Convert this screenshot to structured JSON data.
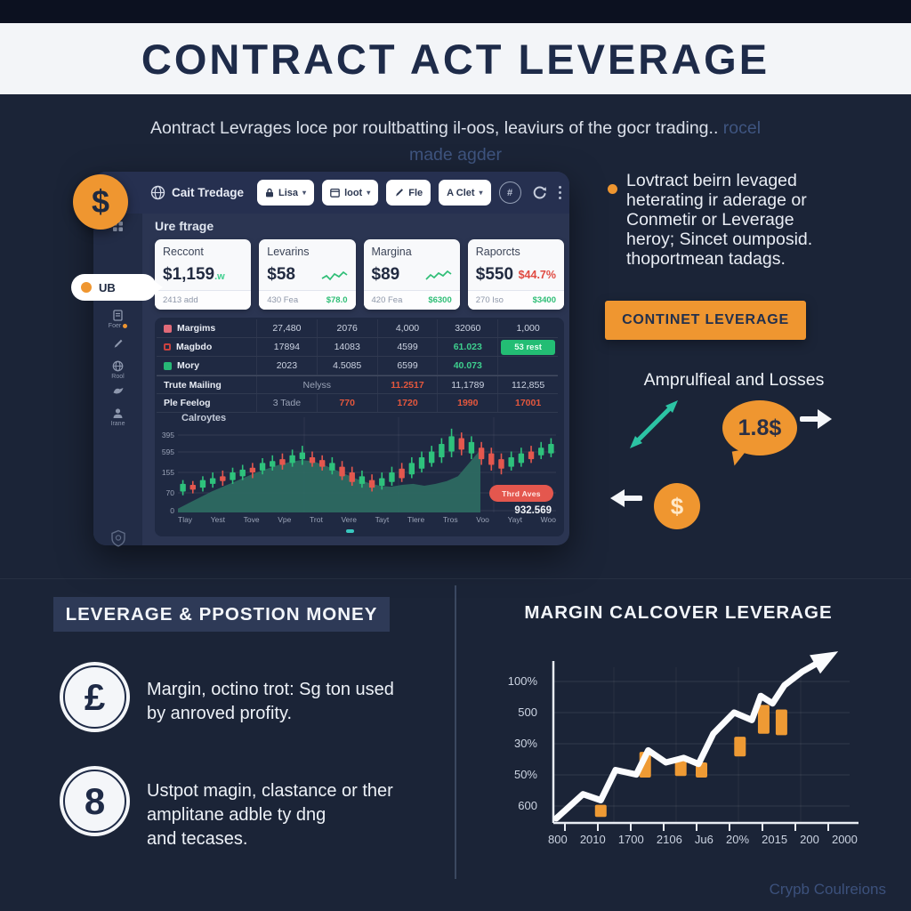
{
  "colors": {
    "orange": "#ef9630",
    "green": "#2ebd7b",
    "red": "#e4574e",
    "teal": "#2cc4a4",
    "navy": "#1e2b49"
  },
  "banner": {
    "title": "CONTRACT ACT LEVERAGE"
  },
  "intro": {
    "line1": "Aontract Levrages loce por roultbatting il-oos, leaviurs of the gocr trading..",
    "line1_faded": " rocel",
    "line2_faded": "made agder"
  },
  "dashboard": {
    "coin_symbol": "$",
    "logo_label": "Cait Tredage",
    "toolbar": {
      "btn1": "Lisa",
      "btn2": "loot",
      "btn3": "Fle",
      "btn4": "A Clet",
      "hash": "#"
    },
    "sidebar": {
      "active_label": "UB",
      "item1_label": "Foer",
      "item2_label": "Rool",
      "item3_label": "Irane"
    },
    "section_title": "Ure ftrage",
    "cards": [
      {
        "title": "Reccont",
        "value": "$1,159",
        "suffix": ".w",
        "foot_left": "2413 add",
        "foot_right": ""
      },
      {
        "title": "Levarins",
        "value": "$58",
        "suffix": "",
        "foot_left": "430 Fea",
        "foot_right": "$78.0"
      },
      {
        "title": "Margina",
        "value": "$89",
        "suffix": "",
        "foot_left": "420 Fea",
        "foot_right": "$6300"
      },
      {
        "title": "Raporcts",
        "value": "$550",
        "delta": "$44.7%",
        "foot_left": "270 Iso",
        "foot_right": "$3400"
      }
    ],
    "table": {
      "rows": [
        {
          "label": "Margims",
          "swatch": "#e06a78",
          "cells": [
            {
              "t": "27,480"
            },
            {
              "t": "2076"
            },
            {
              "t": "4,000"
            },
            {
              "t": "32060"
            },
            {
              "t": "1,000"
            }
          ]
        },
        {
          "label": "Magbdo",
          "swatch": "#c9413f",
          "hollow": true,
          "cells": [
            {
              "t": "17894"
            },
            {
              "t": "14083"
            },
            {
              "t": "4599"
            },
            {
              "t": "61.023",
              "c": "green"
            },
            {
              "t": "53 rest",
              "btn": true
            }
          ]
        },
        {
          "label": "Mory",
          "swatch": "#27b876",
          "cells": [
            {
              "t": "2023"
            },
            {
              "t": "4.5085"
            },
            {
              "t": "6599"
            },
            {
              "t": "40.073",
              "c": "green"
            },
            {
              "t": ""
            }
          ]
        },
        {
          "label": "Trute Mailing",
          "bold": true,
          "topline": true,
          "cells": [
            {
              "t": "Nelyss",
              "span": 2,
              "c": "muted"
            },
            {
              "t": "11.2517",
              "c": "red"
            },
            {
              "t": "11,1789"
            },
            {
              "t": "112,855"
            }
          ]
        },
        {
          "label": "Ple Feelog",
          "bold": true,
          "cells": [
            {
              "t": "3 Tade",
              "c": "muted"
            },
            {
              "t": "770",
              "c": "red"
            },
            {
              "t": "1720",
              "c": "red"
            },
            {
              "t": "1990",
              "c": "red"
            },
            {
              "t": "17001",
              "c": "red"
            }
          ]
        }
      ]
    },
    "chart": {
      "label": "Calroytes",
      "pill_label": "Thrd Aves",
      "pill_value": "932.569"
    }
  },
  "right_panel": {
    "bullet_lines": [
      "Lovtract beirn levaged",
      "heterating ir aderage or",
      "Conmetir or Leverage",
      "heroy; Sincet oumposid.",
      "thoportmean tadags."
    ],
    "cta_label": "CONTINET LEVERAGE",
    "amplified_heading": "Amprulfieal and Losses",
    "bubble_value": "1.8$",
    "coin_symbol": "$"
  },
  "bottom_left": {
    "header": "LEVERAGE & PPOSTION MONEY",
    "items": [
      {
        "icon": "£",
        "lines": [
          "Margin, octino trot: Sg ton used",
          "by anroved profity."
        ]
      },
      {
        "icon": "8",
        "lines": [
          "Ustpot magin, clastance or ther",
          "amplitane adble ty dng",
          "and tecases."
        ]
      }
    ]
  },
  "bottom_right": {
    "title": "MARGIN CALCOVER LEVERAGE",
    "watermark": "Crypb Coulreions"
  },
  "chart_data": [
    {
      "type": "candlestick",
      "title": "Calroytes",
      "y_labels": [
        "395",
        "595",
        "155",
        "70",
        "0"
      ],
      "x_labels": [
        "Tlay",
        "Yest",
        "Tove",
        "Vpe",
        "Trot",
        "Vere",
        "Tayt",
        "Tlere",
        "Tros",
        "Voo",
        "Yayt",
        "Woo"
      ],
      "legend": {
        "pill": "Thrd Aves",
        "pill_value": "932.569"
      },
      "area_pct": [
        4,
        10,
        16,
        22,
        27,
        32,
        37,
        42,
        46,
        50,
        53,
        55,
        54,
        50,
        45,
        40,
        35,
        31,
        28,
        27,
        29,
        30,
        28,
        30,
        33,
        38,
        52,
        66
      ],
      "area_span_pct": 80,
      "candles": [
        [
          18,
          22,
          30,
          34,
          "g"
        ],
        [
          20,
          24,
          29,
          33,
          "r"
        ],
        [
          22,
          26,
          34,
          38,
          "g"
        ],
        [
          26,
          30,
          36,
          42,
          "g"
        ],
        [
          28,
          33,
          38,
          44,
          "r"
        ],
        [
          30,
          34,
          42,
          47,
          "g"
        ],
        [
          34,
          38,
          45,
          50,
          "g"
        ],
        [
          36,
          42,
          47,
          52,
          "r"
        ],
        [
          40,
          44,
          52,
          57,
          "g"
        ],
        [
          44,
          48,
          54,
          60,
          "g"
        ],
        [
          45,
          50,
          56,
          62,
          "r"
        ],
        [
          48,
          52,
          60,
          66,
          "g"
        ],
        [
          50,
          56,
          63,
          70,
          "g"
        ],
        [
          48,
          52,
          58,
          64,
          "r"
        ],
        [
          44,
          48,
          55,
          60,
          "r"
        ],
        [
          40,
          44,
          52,
          58,
          "g"
        ],
        [
          34,
          38,
          48,
          54,
          "r"
        ],
        [
          28,
          32,
          42,
          48,
          "r"
        ],
        [
          26,
          30,
          38,
          44,
          "g"
        ],
        [
          22,
          26,
          34,
          40,
          "r"
        ],
        [
          24,
          28,
          36,
          42,
          "g"
        ],
        [
          28,
          32,
          42,
          48,
          "g"
        ],
        [
          32,
          36,
          46,
          52,
          "r"
        ],
        [
          36,
          40,
          52,
          58,
          "g"
        ],
        [
          42,
          46,
          58,
          64,
          "g"
        ],
        [
          48,
          52,
          64,
          70,
          "g"
        ],
        [
          52,
          58,
          72,
          78,
          "g"
        ],
        [
          58,
          64,
          80,
          88,
          "g"
        ],
        [
          60,
          66,
          78,
          84,
          "r"
        ],
        [
          56,
          62,
          74,
          80,
          "g"
        ],
        [
          50,
          56,
          68,
          74,
          "r"
        ],
        [
          44,
          50,
          62,
          68,
          "r"
        ],
        [
          40,
          46,
          56,
          62,
          "r"
        ],
        [
          44,
          48,
          58,
          64,
          "g"
        ],
        [
          48,
          52,
          62,
          68,
          "g"
        ],
        [
          52,
          56,
          64,
          70,
          "r"
        ],
        [
          56,
          60,
          68,
          74,
          "g"
        ],
        [
          58,
          62,
          72,
          78,
          "g"
        ]
      ]
    },
    {
      "type": "line+bar",
      "title": "MARGIN CALCOVER LEVERAGE",
      "y_labels": [
        "100%",
        "500",
        "30%",
        "50%",
        "600"
      ],
      "x_labels": [
        "800",
        "2010",
        "1700",
        "2106",
        "Ju6",
        "20%",
        "2015",
        "200",
        "2000"
      ],
      "line_pct": [
        [
          1,
          97
        ],
        [
          10,
          81
        ],
        [
          16,
          85
        ],
        [
          21,
          65
        ],
        [
          28,
          68
        ],
        [
          32,
          52
        ],
        [
          38,
          60
        ],
        [
          44,
          57
        ],
        [
          49,
          61
        ],
        [
          54,
          41
        ],
        [
          61,
          27
        ],
        [
          67,
          32
        ],
        [
          70,
          16
        ],
        [
          74,
          21
        ],
        [
          78,
          9
        ],
        [
          84,
          0
        ],
        [
          93,
          -10
        ]
      ],
      "bars_pct": [
        [
          16,
          88,
          96
        ],
        [
          31,
          53,
          70
        ],
        [
          43,
          59,
          69
        ],
        [
          50,
          60,
          70
        ],
        [
          63,
          43,
          56
        ],
        [
          71,
          22,
          41
        ],
        [
          77,
          25,
          42
        ]
      ]
    }
  ]
}
